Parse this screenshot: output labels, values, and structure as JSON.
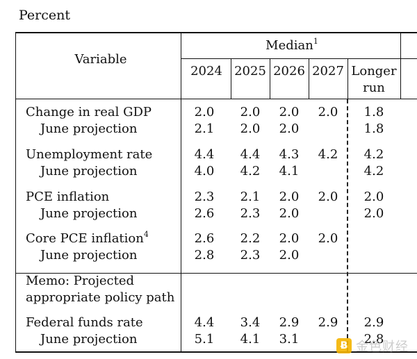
{
  "unit_label": "Percent",
  "header": {
    "variable": "Variable",
    "median": "Median",
    "median_note": "1",
    "years": [
      "2024",
      "2025",
      "2026",
      "2027"
    ],
    "longer_run_line1": "Longer",
    "longer_run_line2": "run"
  },
  "rows": [
    {
      "label": "Change in real GDP",
      "values": [
        "2.0",
        "2.0",
        "2.0",
        "2.0",
        "1.8"
      ]
    },
    {
      "label": "June projection",
      "values": [
        "2.1",
        "2.0",
        "2.0",
        "",
        "1.8"
      ]
    },
    {
      "label": "Unemployment rate",
      "values": [
        "4.4",
        "4.4",
        "4.3",
        "4.2",
        "4.2"
      ]
    },
    {
      "label": "June projection",
      "values": [
        "4.0",
        "4.2",
        "4.1",
        "",
        "4.2"
      ]
    },
    {
      "label": "PCE inflation",
      "values": [
        "2.3",
        "2.1",
        "2.0",
        "2.0",
        "2.0"
      ]
    },
    {
      "label": "June projection",
      "values": [
        "2.6",
        "2.3",
        "2.0",
        "",
        "2.0"
      ]
    },
    {
      "label": "Core PCE inflation",
      "note": "4",
      "values": [
        "2.6",
        "2.2",
        "2.0",
        "2.0",
        ""
      ]
    },
    {
      "label": "June projection",
      "values": [
        "2.8",
        "2.3",
        "2.0",
        "",
        ""
      ]
    },
    {
      "label": "Federal funds rate",
      "values": [
        "4.4",
        "3.4",
        "2.9",
        "2.9",
        "2.9"
      ]
    },
    {
      "label": "June projection",
      "values": [
        "5.1",
        "4.1",
        "3.1",
        "",
        "2.8"
      ]
    }
  ],
  "memo": {
    "line1": "Memo: Projected",
    "line2": "appropriate policy path"
  },
  "watermark": {
    "icon": "Ƀ",
    "text": "金色财经"
  }
}
